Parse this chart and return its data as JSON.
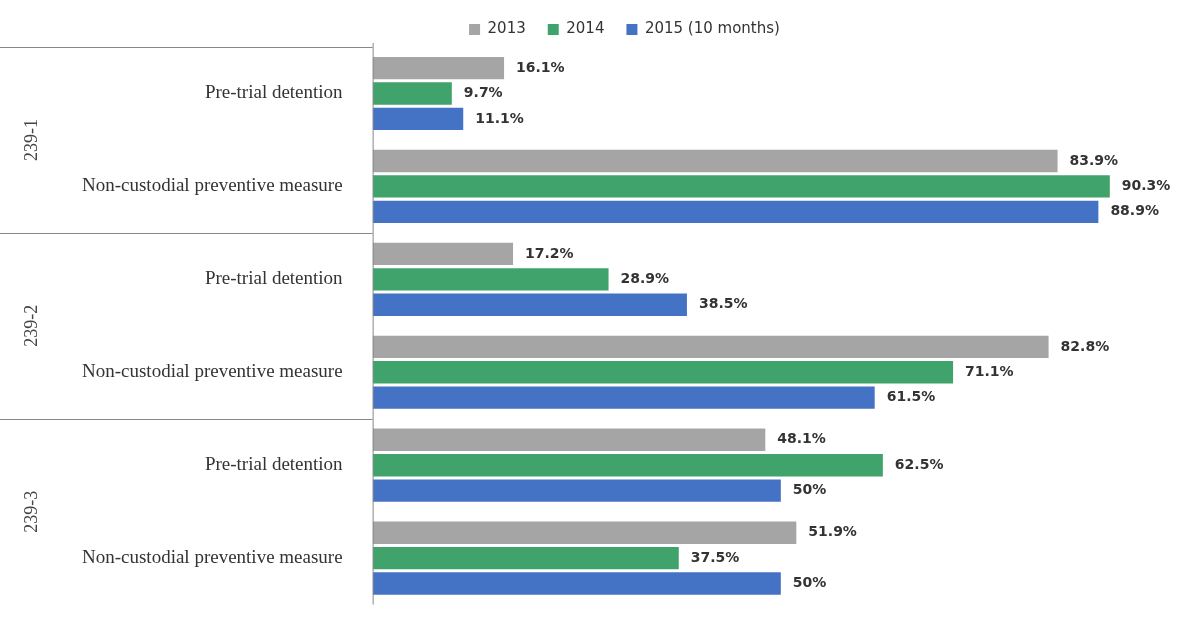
{
  "chart_data": {
    "type": "bar",
    "orientation": "horizontal",
    "categories": [
      "Pre-trial detention",
      "Non-custodial preventive measure",
      "Pre-trial detention",
      "Non-custodial preventive measure",
      "Pre-trial detention",
      "Non-custodial preventive measure"
    ],
    "series": [
      {
        "name": "2013",
        "color": "#a5a5a5",
        "values": [
          16.1,
          83.9,
          17.2,
          82.8,
          48.1,
          51.9
        ],
        "value_labels": [
          "16.1%",
          "83.9%",
          "17.2%",
          "82.8%",
          "48.1%",
          "51.9%"
        ]
      },
      {
        "name": "2014",
        "color": "#3fa36b",
        "values": [
          9.7,
          90.3,
          28.9,
          71.1,
          62.5,
          37.5
        ],
        "value_labels": [
          "9.7%",
          "90.3%",
          "28.9%",
          "71.1%",
          "62.5%",
          "37.5%"
        ]
      },
      {
        "name": "2015 (10 months)",
        "color": "#4472c4",
        "values": [
          11.1,
          88.9,
          38.5,
          61.5,
          50,
          50
        ],
        "value_labels": [
          "11.1%",
          "88.9%",
          "38.5%",
          "61.5%",
          "50%",
          "50%"
        ]
      }
    ],
    "tick_labels": "y",
    "legend": "top",
    "annotations": [
      "239-1",
      "239-2",
      "239-3"
    ]
  }
}
